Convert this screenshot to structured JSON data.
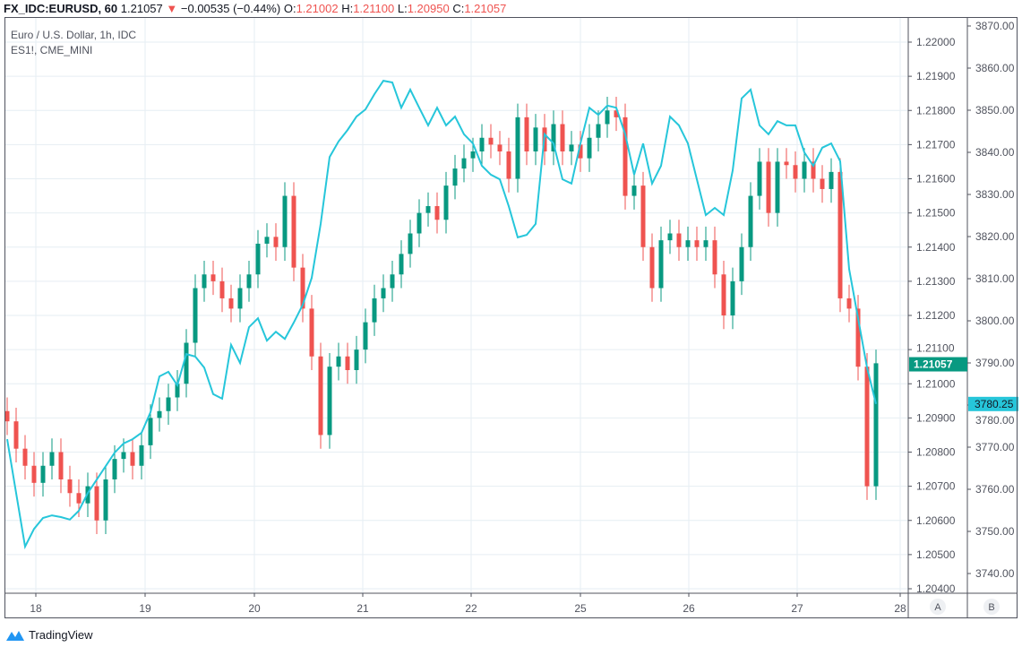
{
  "header": {
    "symbol": "FX_IDC:EURUSD, 60",
    "last": "1.21057",
    "change": "−0.00535 (−0.44%)",
    "o_label": "O:",
    "o": "1.21002",
    "h_label": "H:",
    "h": "1.21100",
    "l_label": "L:",
    "l": "1.20950",
    "c_label": "C:",
    "c": "1.21057"
  },
  "legend": {
    "main": "Euro / U.S. Dollar, 1h, IDC",
    "compare": "ES1!, CME_MINI"
  },
  "footer": {
    "brand": "TradingView"
  },
  "scale_buttons": [
    "A",
    "B"
  ],
  "colors": {
    "up": "#089981",
    "down": "#ef5350",
    "compare": "#26c6da",
    "grid": "#e6eef3",
    "axis": "#50535e"
  },
  "chart_data": {
    "type": "candlestick+line",
    "x_ticks": [
      "18",
      "19",
      "20",
      "21",
      "22",
      "25",
      "26",
      "27",
      "28"
    ],
    "left_axis": {
      "ticks": [
        "1.22000",
        "1.21900",
        "1.21800",
        "1.21700",
        "1.21600",
        "1.21500",
        "1.21400",
        "1.21300",
        "1.21200",
        "1.21100",
        "1.21000",
        "1.20900",
        "1.20800",
        "1.20700",
        "1.20600",
        "1.20500",
        "1.20400"
      ],
      "range": [
        1.204,
        1.22
      ],
      "last_label": "1.21057"
    },
    "right_axis": {
      "ticks": [
        "3870.00",
        "3860.00",
        "3850.00",
        "3840.00",
        "3830.00",
        "3820.00",
        "3810.00",
        "3800.00",
        "3790.00",
        "3780.00",
        "3770.00",
        "3760.00",
        "3750.00",
        "3740.00"
      ],
      "range": [
        3740,
        3870
      ],
      "last_label": "3780.25"
    },
    "eurusd_first_open": 1.2092,
    "eurusd_close": [
      1.2089,
      1.2081,
      1.2076,
      1.2071,
      1.2076,
      1.208,
      1.2072,
      1.2068,
      1.2065,
      1.207,
      1.206,
      1.2072,
      1.2078,
      1.208,
      1.2076,
      1.2082,
      1.209,
      1.2092,
      1.2096,
      1.21,
      1.2112,
      1.2128,
      1.2132,
      1.213,
      1.2125,
      1.2122,
      1.2128,
      1.2132,
      1.2141,
      1.2143,
      1.214,
      1.2155,
      1.2134,
      1.2122,
      1.2108,
      1.2085,
      1.2105,
      1.2108,
      1.2104,
      1.211,
      1.2118,
      1.2125,
      1.2128,
      1.2132,
      1.2138,
      1.2144,
      1.215,
      1.2152,
      1.2148,
      1.2158,
      1.2163,
      1.2166,
      1.2168,
      1.2172,
      1.217,
      1.2168,
      1.216,
      1.2178,
      1.2168,
      1.2175,
      1.2168,
      1.2176,
      1.2168,
      1.217,
      1.2166,
      1.2172,
      1.2176,
      1.218,
      1.2178,
      1.2155,
      1.2158,
      1.214,
      1.2128,
      1.2142,
      1.2144,
      1.214,
      1.2142,
      1.214,
      1.2142,
      1.2132,
      1.212,
      1.213,
      1.214,
      1.2155,
      1.2165,
      1.215,
      1.2165,
      1.2164,
      1.216,
      1.2165,
      1.216,
      1.2157,
      1.2162,
      1.2125,
      1.2122,
      1.2105,
      1.207,
      1.2106
    ],
    "es1_close": [
      3771.9,
      3759.1,
      3746.4,
      3750.6,
      3753.2,
      3753.8,
      3753.4,
      3752.8,
      3754.9,
      3759.1,
      3762.3,
      3765.5,
      3768.7,
      3770.9,
      3771.9,
      3773.4,
      3778.3,
      3786.8,
      3787.9,
      3784.7,
      3792.1,
      3791.5,
      3788.9,
      3782.6,
      3781.5,
      3794.3,
      3790.0,
      3798.5,
      3800.6,
      3795.3,
      3797.4,
      3795.7,
      3799.6,
      3803.8,
      3810.2,
      3823.0,
      3838.9,
      3842.6,
      3845.3,
      3848.5,
      3850.2,
      3853.8,
      3857.0,
      3856.6,
      3850.6,
      3854.9,
      3850.6,
      3846.4,
      3850.6,
      3846.4,
      3848.5,
      3844.3,
      3842.1,
      3836.8,
      3834.7,
      3833.6,
      3827.2,
      3819.8,
      3820.4,
      3823.0,
      3844.3,
      3842.1,
      3833.6,
      3832.6,
      3842.1,
      3850.6,
      3848.9,
      3851.1,
      3850.6,
      3844.3,
      3834.7,
      3842.1,
      3832.6,
      3836.8,
      3848.5,
      3846.4,
      3842.1,
      3833.6,
      3825.1,
      3826.8,
      3825.1,
      3835.7,
      3852.8,
      3854.9,
      3846.4,
      3844.3,
      3847.4,
      3846.4,
      3846.4,
      3840.0,
      3836.8,
      3841.1,
      3842.1,
      3837.9,
      3812.3,
      3800.6,
      3788.9,
      3780.25
    ]
  }
}
